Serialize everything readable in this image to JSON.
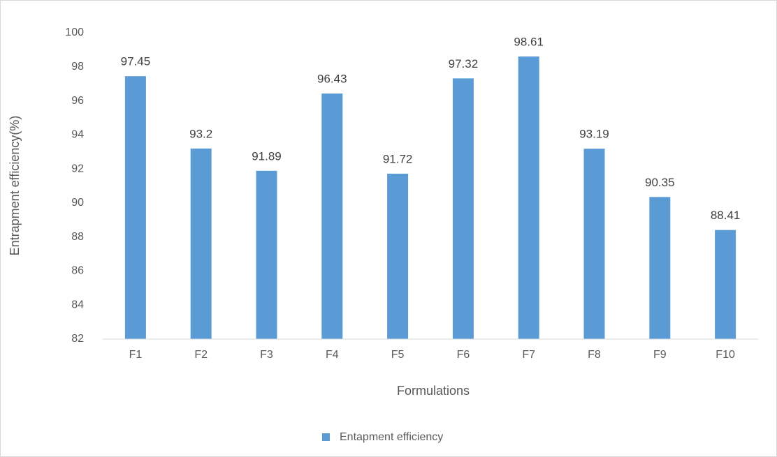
{
  "chart_data": {
    "type": "bar",
    "x_label": "Formulations",
    "y_label": "Entrapment efficiency(%)",
    "categories": [
      "F1",
      "F2",
      "F3",
      "F4",
      "F5",
      "F6",
      "F7",
      "F8",
      "F9",
      "F10"
    ],
    "series": [
      {
        "name": "Entapment efficiency",
        "color": "#5b9bd5",
        "values": [
          97.45,
          93.2,
          91.89,
          96.43,
          91.72,
          97.32,
          98.61,
          93.19,
          90.35,
          88.41
        ]
      }
    ],
    "ylim": [
      82,
      100
    ],
    "yticks": [
      82,
      84,
      86,
      88,
      90,
      92,
      94,
      96,
      98,
      100
    ],
    "grid": false,
    "legend": "bottom"
  }
}
